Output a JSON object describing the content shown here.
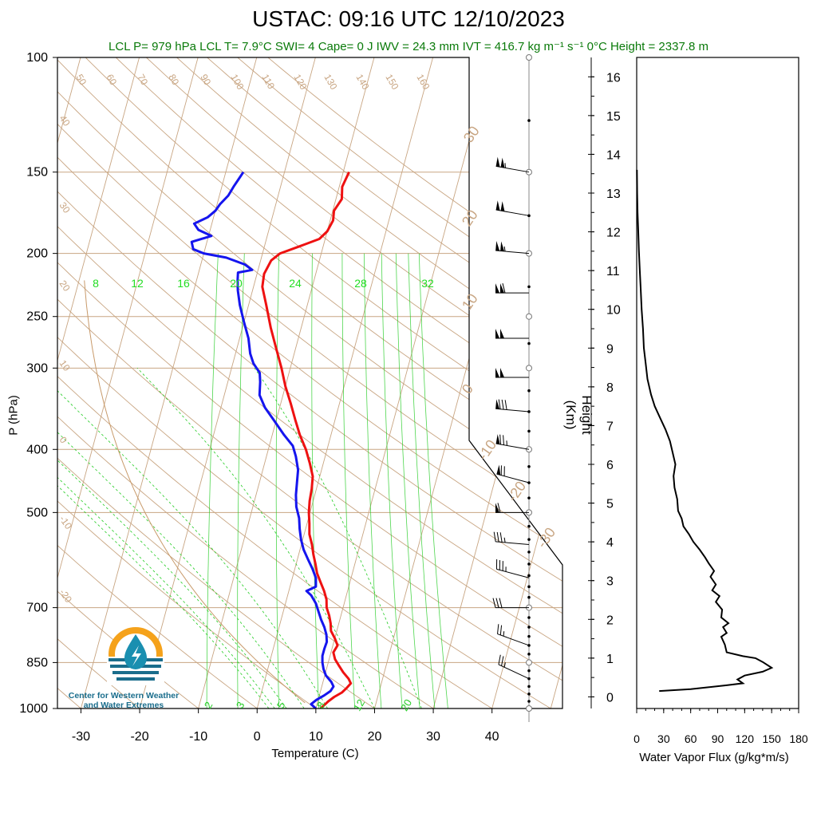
{
  "title": "USTAC: 09:16 UTC 12/10/2023",
  "stats_line": "LCL P= 979 hPa  LCL T= 7.9°C  SWI= 4  Cape= 0 J  IWV = 24.3 mm  IVT = 416.7 kg m⁻¹ s⁻¹  0°C Height = 2337.8 m",
  "logo_text": "Center for Western Weather and Water Extremes",
  "colors": {
    "temperature": "#ee1111",
    "dewpoint": "#1515ee",
    "stats": "#0a7a0a",
    "mixing_ratio": "#22cc22",
    "adiabat": "#c8a582"
  },
  "chart_data": [
    {
      "type": "line",
      "chart_name": "skew-t",
      "xlabel": "Temperature (C)",
      "ylabel": "P (hPa)",
      "xlim": [
        -34,
        52
      ],
      "ylim": [
        1000,
        100
      ],
      "y_scale": "log",
      "x_ticks": [
        -30,
        -20,
        -10,
        0,
        10,
        20,
        30,
        40
      ],
      "y_ticks": [
        100,
        150,
        200,
        250,
        300,
        400,
        500,
        700,
        850,
        1000
      ],
      "series": [
        {
          "color": "red",
          "points": [
            {
              "p": 1000,
              "t": 10.8
            },
            {
              "p": 990,
              "t": 11.2
            },
            {
              "p": 975,
              "t": 11.8
            },
            {
              "p": 960,
              "t": 12.6
            },
            {
              "p": 945,
              "t": 13.7
            },
            {
              "p": 930,
              "t": 14.3
            },
            {
              "p": 915,
              "t": 14.8
            },
            {
              "p": 900,
              "t": 14.2
            },
            {
              "p": 880,
              "t": 13.0
            },
            {
              "p": 860,
              "t": 12.0
            },
            {
              "p": 840,
              "t": 11.0
            },
            {
              "p": 820,
              "t": 10.4
            },
            {
              "p": 800,
              "t": 10.8
            },
            {
              "p": 780,
              "t": 10.0
            },
            {
              "p": 760,
              "t": 9.0
            },
            {
              "p": 740,
              "t": 8.6
            },
            {
              "p": 720,
              "t": 8.0
            },
            {
              "p": 700,
              "t": 7.2
            },
            {
              "p": 680,
              "t": 6.8
            },
            {
              "p": 660,
              "t": 6.0
            },
            {
              "p": 640,
              "t": 5.0
            },
            {
              "p": 620,
              "t": 4.0
            },
            {
              "p": 600,
              "t": 3.3
            },
            {
              "p": 580,
              "t": 2.5
            },
            {
              "p": 560,
              "t": 1.8
            },
            {
              "p": 540,
              "t": 0.9
            },
            {
              "p": 520,
              "t": 0.4
            },
            {
              "p": 500,
              "t": -0.2
            },
            {
              "p": 480,
              "t": -0.6
            },
            {
              "p": 460,
              "t": -0.8
            },
            {
              "p": 440,
              "t": -1.2
            },
            {
              "p": 420,
              "t": -2.3
            },
            {
              "p": 400,
              "t": -3.6
            },
            {
              "p": 380,
              "t": -5.3
            },
            {
              "p": 360,
              "t": -6.8
            },
            {
              "p": 340,
              "t": -8.3
            },
            {
              "p": 320,
              "t": -10.0
            },
            {
              "p": 300,
              "t": -11.5
            },
            {
              "p": 280,
              "t": -13.3
            },
            {
              "p": 260,
              "t": -15.2
            },
            {
              "p": 240,
              "t": -17.0
            },
            {
              "p": 225,
              "t": -18.5
            },
            {
              "p": 215,
              "t": -18.8
            },
            {
              "p": 205,
              "t": -18.2
            },
            {
              "p": 200,
              "t": -17.0
            },
            {
              "p": 195,
              "t": -14.0
            },
            {
              "p": 190,
              "t": -11.0
            },
            {
              "p": 185,
              "t": -10.0
            },
            {
              "p": 178,
              "t": -9.5
            },
            {
              "p": 172,
              "t": -9.8
            },
            {
              "p": 165,
              "t": -9.0
            },
            {
              "p": 158,
              "t": -9.5
            },
            {
              "p": 153,
              "t": -9.2
            },
            {
              "p": 150,
              "t": -9.0
            }
          ]
        },
        {
          "color": "blue",
          "points": [
            {
              "p": 1000,
              "t": 10.0
            },
            {
              "p": 985,
              "t": 9.0
            },
            {
              "p": 970,
              "t": 9.7
            },
            {
              "p": 955,
              "t": 10.8
            },
            {
              "p": 940,
              "t": 11.7
            },
            {
              "p": 925,
              "t": 12.0
            },
            {
              "p": 910,
              "t": 11.4
            },
            {
              "p": 890,
              "t": 10.2
            },
            {
              "p": 870,
              "t": 9.5
            },
            {
              "p": 850,
              "t": 9.0
            },
            {
              "p": 830,
              "t": 8.7
            },
            {
              "p": 810,
              "t": 8.7
            },
            {
              "p": 790,
              "t": 8.8
            },
            {
              "p": 770,
              "t": 8.4
            },
            {
              "p": 750,
              "t": 7.7
            },
            {
              "p": 730,
              "t": 6.8
            },
            {
              "p": 710,
              "t": 6.0
            },
            {
              "p": 690,
              "t": 5.2
            },
            {
              "p": 670,
              "t": 4.0
            },
            {
              "p": 660,
              "t": 3.0
            },
            {
              "p": 650,
              "t": 4.4
            },
            {
              "p": 630,
              "t": 4.0
            },
            {
              "p": 610,
              "t": 3.0
            },
            {
              "p": 590,
              "t": 1.8
            },
            {
              "p": 570,
              "t": 0.6
            },
            {
              "p": 550,
              "t": -0.3
            },
            {
              "p": 530,
              "t": -1.0
            },
            {
              "p": 510,
              "t": -1.6
            },
            {
              "p": 490,
              "t": -2.6
            },
            {
              "p": 470,
              "t": -3.2
            },
            {
              "p": 450,
              "t": -3.6
            },
            {
              "p": 430,
              "t": -4.0
            },
            {
              "p": 410,
              "t": -5.0
            },
            {
              "p": 395,
              "t": -6.0
            },
            {
              "p": 380,
              "t": -8.0
            },
            {
              "p": 360,
              "t": -10.5
            },
            {
              "p": 345,
              "t": -12.5
            },
            {
              "p": 330,
              "t": -14.0
            },
            {
              "p": 315,
              "t": -14.5
            },
            {
              "p": 305,
              "t": -15.0
            },
            {
              "p": 295,
              "t": -16.5
            },
            {
              "p": 285,
              "t": -17.5
            },
            {
              "p": 270,
              "t": -18.5
            },
            {
              "p": 255,
              "t": -20.0
            },
            {
              "p": 240,
              "t": -21.5
            },
            {
              "p": 228,
              "t": -22.5
            },
            {
              "p": 220,
              "t": -23.0
            },
            {
              "p": 214,
              "t": -23.3
            },
            {
              "p": 212,
              "t": -21.0
            },
            {
              "p": 208,
              "t": -22.5
            },
            {
              "p": 203,
              "t": -26.0
            },
            {
              "p": 200,
              "t": -30.0
            },
            {
              "p": 197,
              "t": -32.0
            },
            {
              "p": 192,
              "t": -32.6
            },
            {
              "p": 188,
              "t": -29.5
            },
            {
              "p": 184,
              "t": -32.0
            },
            {
              "p": 180,
              "t": -33.0
            },
            {
              "p": 176,
              "t": -31.0
            },
            {
              "p": 172,
              "t": -30.0
            },
            {
              "p": 168,
              "t": -29.5
            },
            {
              "p": 163,
              "t": -28.5
            },
            {
              "p": 158,
              "t": -28.0
            },
            {
              "p": 154,
              "t": -27.5
            },
            {
              "p": 150,
              "t": -27.0
            }
          ]
        }
      ],
      "isotherm_label_values": [
        -40,
        -30,
        -20,
        -10,
        0,
        10,
        20,
        30
      ],
      "dry_adiabat_label_values": [
        -30,
        -20,
        -10,
        0,
        10,
        20,
        30,
        40,
        50,
        60,
        70,
        80,
        90,
        100,
        110,
        120,
        130,
        140,
        150,
        160
      ],
      "mixing_ratio_labels_upper": [
        "8",
        "12",
        "16",
        "20",
        "24",
        "28",
        "32"
      ],
      "mixing_ratio_labels_lower": [
        "2",
        "3",
        "5",
        "8",
        "12",
        "20"
      ],
      "wind_barbs": [
        {
          "p": 150,
          "dir": 280,
          "spd": 105
        },
        {
          "p": 175,
          "dir": 280,
          "spd": 100
        },
        {
          "p": 200,
          "dir": 275,
          "spd": 105
        },
        {
          "p": 230,
          "dir": 270,
          "spd": 110
        },
        {
          "p": 270,
          "dir": 270,
          "spd": 100
        },
        {
          "p": 310,
          "dir": 270,
          "spd": 100
        },
        {
          "p": 350,
          "dir": 275,
          "spd": 80
        },
        {
          "p": 400,
          "dir": 280,
          "spd": 75
        },
        {
          "p": 450,
          "dir": 285,
          "spd": 70
        },
        {
          "p": 500,
          "dir": 270,
          "spd": 60
        },
        {
          "p": 560,
          "dir": 275,
          "spd": 35
        },
        {
          "p": 630,
          "dir": 285,
          "spd": 35
        },
        {
          "p": 700,
          "dir": 270,
          "spd": 30
        },
        {
          "p": 800,
          "dir": 290,
          "spd": 25
        },
        {
          "p": 900,
          "dir": 295,
          "spd": 25
        }
      ]
    },
    {
      "type": "line",
      "chart_name": "water-vapor-flux-profile",
      "xlabel": "Water Vapor Flux (g/kg*m/s)",
      "ylabel": "Height (Km)",
      "xlim": [
        0,
        180
      ],
      "ylim": [
        -0.3,
        16.5
      ],
      "x_ticks": [
        0,
        30,
        60,
        90,
        120,
        150,
        180
      ],
      "y_ticks": [
        0,
        1,
        2,
        3,
        4,
        5,
        6,
        7,
        8,
        9,
        10,
        11,
        12,
        13,
        14,
        15,
        16
      ],
      "series": [
        {
          "color": "black",
          "points": [
            {
              "x": 25,
              "y": 0.15
            },
            {
              "x": 60,
              "y": 0.2
            },
            {
              "x": 100,
              "y": 0.3
            },
            {
              "x": 118,
              "y": 0.35
            },
            {
              "x": 112,
              "y": 0.45
            },
            {
              "x": 120,
              "y": 0.55
            },
            {
              "x": 140,
              "y": 0.65
            },
            {
              "x": 150,
              "y": 0.75
            },
            {
              "x": 140,
              "y": 0.9
            },
            {
              "x": 132,
              "y": 1.0
            },
            {
              "x": 118,
              "y": 1.05
            },
            {
              "x": 100,
              "y": 1.15
            },
            {
              "x": 98,
              "y": 1.35
            },
            {
              "x": 94,
              "y": 1.55
            },
            {
              "x": 100,
              "y": 1.65
            },
            {
              "x": 96,
              "y": 1.8
            },
            {
              "x": 102,
              "y": 1.9
            },
            {
              "x": 94,
              "y": 2.05
            },
            {
              "x": 95,
              "y": 2.25
            },
            {
              "x": 88,
              "y": 2.45
            },
            {
              "x": 92,
              "y": 2.6
            },
            {
              "x": 84,
              "y": 2.75
            },
            {
              "x": 88,
              "y": 2.9
            },
            {
              "x": 82,
              "y": 3.1
            },
            {
              "x": 86,
              "y": 3.25
            },
            {
              "x": 80,
              "y": 3.45
            },
            {
              "x": 76,
              "y": 3.6
            },
            {
              "x": 70,
              "y": 3.8
            },
            {
              "x": 63,
              "y": 4.0
            },
            {
              "x": 58,
              "y": 4.2
            },
            {
              "x": 52,
              "y": 4.4
            },
            {
              "x": 50,
              "y": 4.6
            },
            {
              "x": 46,
              "y": 4.8
            },
            {
              "x": 45,
              "y": 5.1
            },
            {
              "x": 42,
              "y": 5.4
            },
            {
              "x": 41,
              "y": 5.7
            },
            {
              "x": 43,
              "y": 6.0
            },
            {
              "x": 40,
              "y": 6.3
            },
            {
              "x": 37,
              "y": 6.6
            },
            {
              "x": 32,
              "y": 6.9
            },
            {
              "x": 26,
              "y": 7.2
            },
            {
              "x": 20,
              "y": 7.5
            },
            {
              "x": 16,
              "y": 7.8
            },
            {
              "x": 12,
              "y": 8.2
            },
            {
              "x": 10,
              "y": 8.6
            },
            {
              "x": 8,
              "y": 9.0
            },
            {
              "x": 7,
              "y": 9.5
            },
            {
              "x": 5.5,
              "y": 10.0
            },
            {
              "x": 4.5,
              "y": 10.5
            },
            {
              "x": 3.5,
              "y": 11.0
            },
            {
              "x": 2.5,
              "y": 11.5
            },
            {
              "x": 1.8,
              "y": 12.0
            },
            {
              "x": 1.0,
              "y": 12.5
            },
            {
              "x": 0.5,
              "y": 13.0
            },
            {
              "x": 0.3,
              "y": 13.6
            }
          ]
        }
      ]
    }
  ]
}
